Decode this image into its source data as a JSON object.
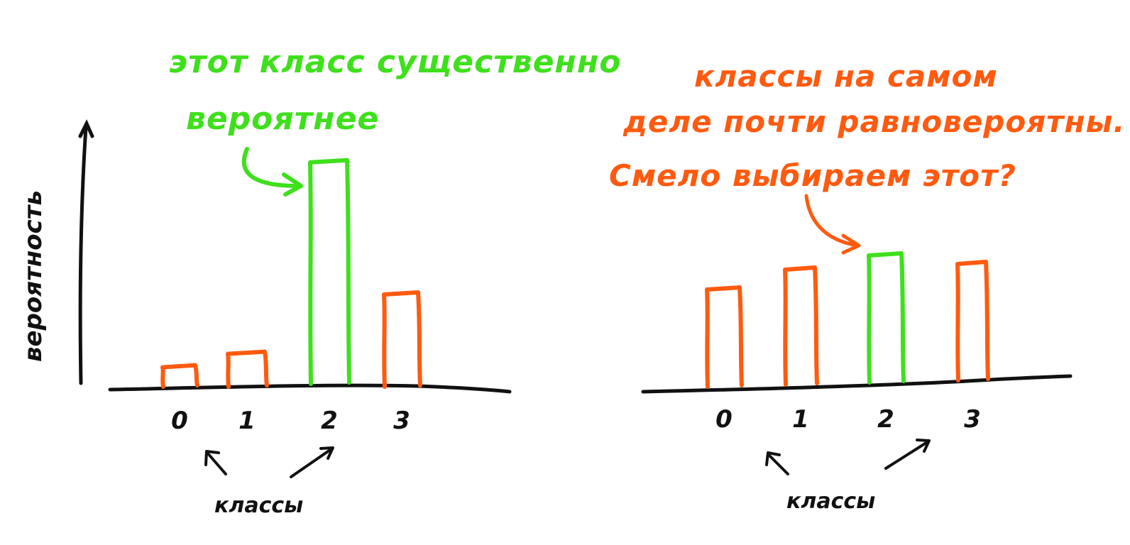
{
  "colors": {
    "highlight": "#3ee01c",
    "normal": "#ff5a0f",
    "ink": "#111111"
  },
  "chart_data": [
    {
      "type": "bar",
      "categories": [
        "0",
        "1",
        "2",
        "3"
      ],
      "values": [
        0.08,
        0.13,
        0.84,
        0.35
      ],
      "highlight_index": 2,
      "ylabel": "вероятность",
      "xlabel": "классы",
      "ylim": [
        0,
        1
      ],
      "annotation": {
        "lines": [
          "этот класс существенно",
          "вероятнее"
        ]
      }
    },
    {
      "type": "bar",
      "categories": [
        "0",
        "1",
        "2",
        "3"
      ],
      "values": [
        0.35,
        0.42,
        0.47,
        0.44
      ],
      "highlight_index": 2,
      "xlabel": "классы",
      "ylim": [
        0,
        1
      ],
      "annotation": {
        "lines": [
          "классы на самом",
          "деле почти равновероятны.",
          "Смело выбираем этот?"
        ]
      }
    }
  ]
}
